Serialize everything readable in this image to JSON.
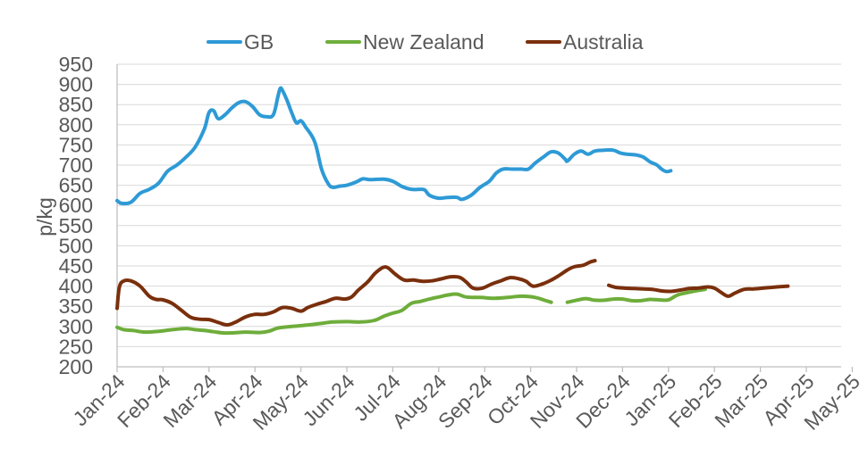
{
  "chart_data": {
    "type": "line",
    "title": "",
    "xlabel": "",
    "ylabel": "p/kg",
    "ylim": [
      200,
      950
    ],
    "yticks": [
      200,
      250,
      300,
      350,
      400,
      450,
      500,
      550,
      600,
      650,
      700,
      750,
      800,
      850,
      900,
      950
    ],
    "grid": true,
    "legend_position": "top-center",
    "categories": [
      "Jan-24",
      "Feb-24",
      "Mar-24",
      "Apr-24",
      "May-24",
      "Jun-24",
      "Jul-24",
      "Aug-24",
      "Sep-24",
      "Oct-24",
      "Nov-24",
      "Dec-24",
      "Jan-25",
      "Feb-25",
      "Mar-25",
      "Apr-25",
      "May-25"
    ],
    "series": [
      {
        "name": "GB",
        "color": "#2E9AD6",
        "points": [
          [
            [
              0,
              612
            ],
            [
              0.1,
              605
            ],
            [
              0.3,
              608
            ],
            [
              0.5,
              630
            ],
            [
              0.7,
              640
            ],
            [
              0.9,
              655
            ],
            [
              1.1,
              685
            ],
            [
              1.3,
              700
            ],
            [
              1.5,
              720
            ],
            [
              1.7,
              745
            ],
            [
              1.9,
              790
            ],
            [
              2.0,
              830
            ],
            [
              2.1,
              835
            ],
            [
              2.2,
              815
            ],
            [
              2.35,
              825
            ],
            [
              2.5,
              842
            ],
            [
              2.65,
              855
            ],
            [
              2.8,
              857
            ],
            [
              2.95,
              845
            ],
            [
              3.1,
              825
            ],
            [
              3.25,
              820
            ],
            [
              3.4,
              825
            ],
            [
              3.5,
              870
            ],
            [
              3.55,
              890
            ],
            [
              3.6,
              885
            ],
            [
              3.7,
              860
            ],
            [
              3.8,
              830
            ],
            [
              3.9,
              805
            ],
            [
              4.0,
              810
            ],
            [
              4.1,
              795
            ],
            [
              4.3,
              758
            ],
            [
              4.45,
              690
            ],
            [
              4.6,
              653
            ],
            [
              4.7,
              645
            ],
            [
              4.85,
              648
            ],
            [
              5.0,
              650
            ],
            [
              5.2,
              658
            ],
            [
              5.35,
              666
            ],
            [
              5.5,
              664
            ],
            [
              5.8,
              665
            ],
            [
              6.0,
              660
            ],
            [
              6.2,
              647
            ],
            [
              6.4,
              640
            ],
            [
              6.6,
              640
            ],
            [
              6.7,
              638
            ],
            [
              6.8,
              625
            ],
            [
              7.0,
              618
            ],
            [
              7.2,
              620
            ],
            [
              7.4,
              620
            ],
            [
              7.5,
              615
            ],
            [
              7.7,
              625
            ],
            [
              7.9,
              645
            ],
            [
              8.1,
              660
            ],
            [
              8.25,
              680
            ],
            [
              8.4,
              690
            ],
            [
              8.6,
              690
            ],
            [
              8.8,
              690
            ],
            [
              8.95,
              690
            ],
            [
              9.1,
              705
            ],
            [
              9.3,
              722
            ],
            [
              9.45,
              733
            ],
            [
              9.6,
              730
            ],
            [
              9.75,
              715
            ],
            [
              9.8,
              710
            ],
            [
              9.95,
              727
            ],
            [
              10.1,
              735
            ],
            [
              10.25,
              727
            ],
            [
              10.4,
              735
            ],
            [
              10.6,
              737
            ],
            [
              10.8,
              737
            ],
            [
              10.95,
              730
            ],
            [
              11.1,
              727
            ],
            [
              11.3,
              725
            ],
            [
              11.45,
              720
            ],
            [
              11.6,
              708
            ],
            [
              11.75,
              700
            ],
            [
              11.85,
              690
            ],
            [
              11.95,
              684
            ],
            [
              12.05,
              686
            ]
          ]
        ]
      },
      {
        "name": "New Zealand",
        "color": "#6EAD3B",
        "points": [
          [
            [
              0,
              298
            ],
            [
              0.15,
              292
            ],
            [
              0.35,
              290
            ],
            [
              0.6,
              286
            ],
            [
              0.9,
              288
            ],
            [
              1.2,
              292
            ],
            [
              1.5,
              295
            ],
            [
              1.7,
              292
            ],
            [
              1.9,
              290
            ],
            [
              2.1,
              287
            ],
            [
              2.3,
              284
            ],
            [
              2.5,
              284
            ],
            [
              2.8,
              286
            ],
            [
              3.1,
              285
            ],
            [
              3.3,
              288
            ],
            [
              3.5,
              296
            ],
            [
              3.8,
              300
            ],
            [
              4.1,
              303
            ],
            [
              4.4,
              307
            ],
            [
              4.7,
              311
            ],
            [
              5.0,
              312
            ],
            [
              5.3,
              311
            ],
            [
              5.6,
              315
            ],
            [
              5.8,
              325
            ],
            [
              6.0,
              333
            ],
            [
              6.2,
              340
            ],
            [
              6.4,
              357
            ],
            [
              6.6,
              362
            ],
            [
              6.8,
              368
            ],
            [
              7.0,
              373
            ],
            [
              7.2,
              378
            ],
            [
              7.4,
              380
            ],
            [
              7.6,
              373
            ],
            [
              7.9,
              372
            ],
            [
              8.2,
              370
            ],
            [
              8.5,
              372
            ],
            [
              8.8,
              375
            ],
            [
              9.1,
              372
            ],
            [
              9.3,
              365
            ],
            [
              9.45,
              360
            ]
          ],
          [
            [
              9.8,
              360
            ],
            [
              10.0,
              365
            ],
            [
              10.2,
              369
            ],
            [
              10.4,
              365
            ],
            [
              10.6,
              365
            ],
            [
              10.8,
              368
            ],
            [
              11.0,
              368
            ],
            [
              11.2,
              364
            ],
            [
              11.4,
              364
            ],
            [
              11.6,
              367
            ],
            [
              11.8,
              366
            ],
            [
              12.0,
              366
            ],
            [
              12.2,
              378
            ],
            [
              12.5,
              386
            ],
            [
              12.8,
              392
            ]
          ]
        ]
      },
      {
        "name": "Australia",
        "color": "#7A2F0C",
        "points": [
          [
            [
              0,
              345
            ],
            [
              0.05,
              398
            ],
            [
              0.15,
              413
            ],
            [
              0.3,
              413
            ],
            [
              0.5,
              400
            ],
            [
              0.7,
              375
            ],
            [
              0.85,
              367
            ],
            [
              1.0,
              366
            ],
            [
              1.2,
              357
            ],
            [
              1.4,
              340
            ],
            [
              1.6,
              323
            ],
            [
              1.8,
              318
            ],
            [
              2.0,
              317
            ],
            [
              2.2,
              310
            ],
            [
              2.4,
              304
            ],
            [
              2.6,
              312
            ],
            [
              2.8,
              324
            ],
            [
              3.0,
              330
            ],
            [
              3.2,
              330
            ],
            [
              3.4,
              336
            ],
            [
              3.6,
              347
            ],
            [
              3.8,
              345
            ],
            [
              4.0,
              338
            ],
            [
              4.15,
              347
            ],
            [
              4.35,
              355
            ],
            [
              4.55,
              362
            ],
            [
              4.75,
              370
            ],
            [
              4.95,
              368
            ],
            [
              5.1,
              373
            ],
            [
              5.25,
              390
            ],
            [
              5.45,
              410
            ],
            [
              5.6,
              430
            ],
            [
              5.7,
              440
            ],
            [
              5.8,
              447
            ],
            [
              5.9,
              445
            ],
            [
              6.05,
              430
            ],
            [
              6.25,
              415
            ],
            [
              6.45,
              415
            ],
            [
              6.65,
              412
            ],
            [
              6.85,
              413
            ],
            [
              7.05,
              418
            ],
            [
              7.25,
              423
            ],
            [
              7.45,
              422
            ],
            [
              7.6,
              410
            ],
            [
              7.75,
              395
            ],
            [
              7.95,
              395
            ],
            [
              8.15,
              405
            ],
            [
              8.35,
              413
            ],
            [
              8.55,
              421
            ],
            [
              8.75,
              418
            ],
            [
              8.9,
              412
            ],
            [
              9.05,
              400
            ],
            [
              9.25,
              405
            ],
            [
              9.45,
              415
            ],
            [
              9.6,
              425
            ],
            [
              9.8,
              440
            ],
            [
              9.95,
              448
            ],
            [
              10.15,
              452
            ],
            [
              10.3,
              460
            ],
            [
              10.4,
              463
            ]
          ],
          [
            [
              10.7,
              402
            ],
            [
              10.85,
              397
            ],
            [
              11.05,
              395
            ],
            [
              11.25,
              394
            ],
            [
              11.45,
              393
            ],
            [
              11.65,
              392
            ],
            [
              11.85,
              388
            ],
            [
              12.05,
              387
            ],
            [
              12.25,
              390
            ],
            [
              12.45,
              394
            ],
            [
              12.65,
              395
            ],
            [
              12.85,
              398
            ],
            [
              13.0,
              395
            ],
            [
              13.15,
              384
            ],
            [
              13.3,
              375
            ],
            [
              13.45,
              383
            ],
            [
              13.65,
              392
            ],
            [
              13.85,
              393
            ],
            [
              14.05,
              395
            ],
            [
              14.25,
              397
            ],
            [
              14.45,
              399
            ],
            [
              14.6,
              400
            ]
          ]
        ]
      }
    ]
  }
}
